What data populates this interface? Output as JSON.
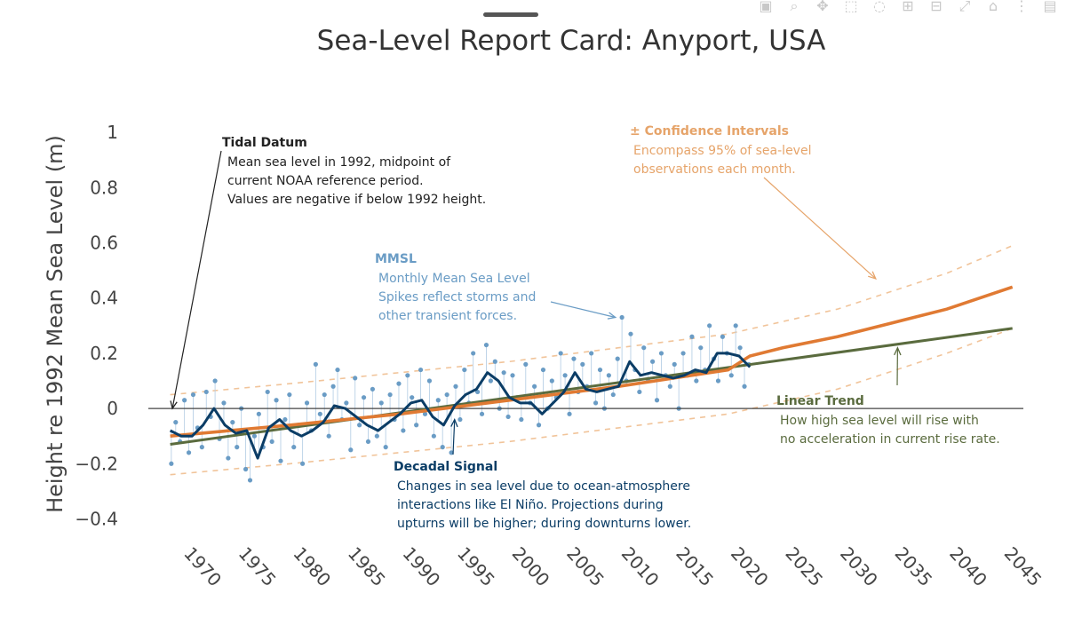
{
  "modebar": {
    "icons": [
      "camera-icon",
      "zoom-icon",
      "pan-icon",
      "box-select-icon",
      "lasso-icon",
      "zoom-in-icon",
      "zoom-out-icon",
      "autoscale-icon",
      "home-icon",
      "spike-lines-icon",
      "hover-compare-icon"
    ]
  },
  "colors": {
    "observations": "#6a9cc5",
    "decadal": "#0b3d66",
    "trend": "#5a6b3e",
    "projection": "#e07a33",
    "confidence": "#f1c49a",
    "tidal_annotation": "#222222",
    "mmsl_annotation": "#6a9cc5",
    "decadal_annotation": "#0b3d66",
    "confidence_annotation": "#e6a46a",
    "trend_annotation": "#5a6b3e"
  },
  "chart_data": {
    "type": "line",
    "title": "Sea-Level Report Card: Anyport, USA",
    "xlabel": "",
    "ylabel": "Height re 1992 Mean Sea Level (m)",
    "xlim": [
      1967,
      2047
    ],
    "ylim": [
      -0.45,
      1.02
    ],
    "xticks": [
      1970,
      1975,
      1980,
      1985,
      1990,
      1995,
      2000,
      2005,
      2010,
      2015,
      2020,
      2025,
      2030,
      2035,
      2040,
      2045
    ],
    "ytick_labels": [
      {
        "value": 1,
        "label": "1"
      },
      {
        "value": 0.8,
        "label": "0.8"
      },
      {
        "value": 0.6,
        "label": "0.6"
      },
      {
        "value": 0.4,
        "label": "0.4"
      },
      {
        "value": 0.2,
        "label": "0.2"
      },
      {
        "value": 0,
        "label": "0"
      },
      {
        "value": -0.2,
        "label": "−0.2"
      },
      {
        "value": -0.4,
        "label": "−0.4"
      }
    ],
    "zero_line": true,
    "grid": false,
    "legend": "none",
    "series": [
      {
        "role": "linear-trend",
        "x": [
          1969,
          2046
        ],
        "y": [
          -0.13,
          0.29
        ]
      },
      {
        "role": "upper-confidence",
        "x": [
          1969,
          1980,
          1990,
          2000,
          2010,
          2020,
          2030,
          2040,
          2046
        ],
        "y": [
          0.05,
          0.09,
          0.13,
          0.17,
          0.22,
          0.27,
          0.36,
          0.49,
          0.59
        ]
      },
      {
        "role": "lower-confidence",
        "x": [
          1969,
          1980,
          1990,
          2000,
          2010,
          2020,
          2030,
          2040,
          2046
        ],
        "y": [
          -0.24,
          -0.2,
          -0.16,
          -0.12,
          -0.07,
          -0.02,
          0.07,
          0.2,
          0.29
        ]
      },
      {
        "role": "quadratic-projection",
        "x": [
          1969,
          1980,
          1990,
          2000,
          2010,
          2020,
          2022,
          2025,
          2030,
          2035,
          2040,
          2046
        ],
        "y": [
          -0.1,
          -0.06,
          -0.02,
          0.03,
          0.08,
          0.14,
          0.19,
          0.22,
          0.26,
          0.31,
          0.36,
          0.44
        ]
      },
      {
        "role": "decadal-signal",
        "x": [
          1969,
          1970,
          1971,
          1972,
          1973,
          1974,
          1975,
          1976,
          1977,
          1978,
          1979,
          1980,
          1981,
          1982,
          1983,
          1984,
          1985,
          1986,
          1987,
          1988,
          1989,
          1990,
          1991,
          1992,
          1993,
          1994,
          1995,
          1996,
          1997,
          1998,
          1999,
          2000,
          2001,
          2002,
          2003,
          2004,
          2005,
          2006,
          2007,
          2008,
          2009,
          2010,
          2011,
          2012,
          2013,
          2014,
          2015,
          2016,
          2017,
          2018,
          2019,
          2020,
          2021,
          2022
        ],
        "y": [
          -0.08,
          -0.1,
          -0.1,
          -0.06,
          -0.0,
          -0.06,
          -0.09,
          -0.08,
          -0.18,
          -0.07,
          -0.04,
          -0.08,
          -0.1,
          -0.08,
          -0.05,
          0.01,
          0.0,
          -0.03,
          -0.06,
          -0.08,
          -0.05,
          -0.02,
          0.02,
          0.03,
          -0.03,
          -0.06,
          0.01,
          0.05,
          0.07,
          0.13,
          0.1,
          0.04,
          0.02,
          0.02,
          -0.02,
          0.02,
          0.06,
          0.13,
          0.07,
          0.06,
          0.07,
          0.08,
          0.17,
          0.12,
          0.13,
          0.12,
          0.11,
          0.12,
          0.14,
          0.13,
          0.2,
          0.2,
          0.19,
          0.15
        ]
      },
      {
        "role": "monthly-mean-sea-level",
        "x": [
          1969.1,
          1969.5,
          1969.9,
          1970.3,
          1970.7,
          1971.1,
          1971.5,
          1971.9,
          1972.3,
          1972.7,
          1973.1,
          1973.5,
          1973.9,
          1974.3,
          1974.7,
          1975.1,
          1975.5,
          1975.9,
          1976.3,
          1976.7,
          1977.1,
          1977.5,
          1977.9,
          1978.3,
          1978.7,
          1979.1,
          1979.5,
          1979.9,
          1980.3,
          1980.7,
          1981.1,
          1981.5,
          1981.9,
          1982.3,
          1982.7,
          1983.1,
          1983.5,
          1983.9,
          1984.3,
          1984.7,
          1985.1,
          1985.5,
          1985.9,
          1986.3,
          1986.7,
          1987.1,
          1987.5,
          1987.9,
          1988.3,
          1988.7,
          1989.1,
          1989.5,
          1989.9,
          1990.3,
          1990.7,
          1991.1,
          1991.5,
          1991.9,
          1992.3,
          1992.7,
          1993.1,
          1993.5,
          1993.9,
          1994.3,
          1994.7,
          1995.1,
          1995.5,
          1995.9,
          1996.3,
          1996.7,
          1997.1,
          1997.5,
          1997.9,
          1998.3,
          1998.7,
          1999.1,
          1999.5,
          1999.9,
          2000.3,
          2000.7,
          2001.1,
          2001.5,
          2001.9,
          2002.3,
          2002.7,
          2003.1,
          2003.5,
          2003.9,
          2004.3,
          2004.7,
          2005.1,
          2005.5,
          2005.9,
          2006.3,
          2006.7,
          2007.1,
          2007.5,
          2007.9,
          2008.3,
          2008.7,
          2009.1,
          2009.5,
          2009.9,
          2010.3,
          2010.7,
          2011.1,
          2011.5,
          2011.9,
          2012.3,
          2012.7,
          2013.1,
          2013.5,
          2013.9,
          2014.3,
          2014.7,
          2015.1,
          2015.5,
          2015.9,
          2016.3,
          2016.7,
          2017.1,
          2017.5,
          2017.9,
          2018.3,
          2018.7,
          2019.1,
          2019.5,
          2019.9,
          2020.3,
          2020.7,
          2021.1,
          2021.5,
          2021.9
        ],
        "y": [
          -0.2,
          -0.05,
          -0.12,
          0.03,
          -0.16,
          0.05,
          -0.07,
          -0.14,
          0.06,
          -0.03,
          0.1,
          -0.11,
          0.02,
          -0.18,
          -0.05,
          -0.14,
          0.0,
          -0.22,
          -0.26,
          -0.1,
          -0.02,
          -0.14,
          0.06,
          -0.12,
          0.03,
          -0.19,
          -0.04,
          0.05,
          -0.14,
          -0.06,
          -0.2,
          0.02,
          -0.08,
          0.16,
          -0.02,
          0.05,
          -0.1,
          0.08,
          0.14,
          -0.04,
          0.02,
          -0.15,
          0.11,
          -0.06,
          0.04,
          -0.12,
          0.07,
          -0.1,
          0.02,
          -0.14,
          0.05,
          -0.04,
          0.09,
          -0.08,
          0.12,
          0.04,
          -0.06,
          0.14,
          -0.02,
          0.1,
          -0.1,
          0.03,
          -0.14,
          0.05,
          -0.16,
          0.08,
          -0.04,
          0.14,
          0.02,
          0.2,
          0.06,
          -0.02,
          0.23,
          0.1,
          0.17,
          0.0,
          0.13,
          -0.03,
          0.12,
          0.04,
          -0.04,
          0.16,
          0.02,
          0.08,
          -0.06,
          0.14,
          0.0,
          0.1,
          0.04,
          0.2,
          0.12,
          -0.02,
          0.18,
          0.06,
          0.16,
          0.08,
          0.2,
          0.02,
          0.14,
          0.0,
          0.12,
          0.05,
          0.18,
          0.33,
          0.1,
          0.27,
          0.14,
          0.06,
          0.22,
          0.1,
          0.17,
          0.03,
          0.2,
          0.12,
          0.08,
          0.16,
          0.0,
          0.2,
          0.12,
          0.26,
          0.1,
          0.22,
          0.14,
          0.3,
          0.18,
          0.1,
          0.26,
          0.2,
          0.12,
          0.3,
          0.22,
          0.08,
          0.16
        ]
      }
    ],
    "annotations": [
      {
        "role": "tidal",
        "title": "Tidal Datum",
        "lines": [
          "Mean sea level in 1992, midpoint of",
          "current NOAA reference period.",
          "Values are negative if below 1992 height."
        ],
        "target": [
          1969.2,
          0.0
        ]
      },
      {
        "role": "mmsl",
        "title": "MMSL",
        "lines": [
          "Monthly Mean Sea Level",
          "Spikes reflect storms and",
          "other transient forces."
        ],
        "target": [
          2009.7,
          0.33
        ]
      },
      {
        "role": "confidence",
        "title": "± Confidence Intervals",
        "lines": [
          "Encompass 95% of sea-level",
          "observations each month."
        ],
        "target": [
          2033.5,
          0.47
        ]
      },
      {
        "role": "decadal",
        "title": "Decadal Signal",
        "lines": [
          "Changes in sea level due to ocean-atmosphere",
          "interactions like El Niño. Projections during",
          "upturns will be higher; during downturns lower."
        ],
        "target": [
          1995,
          -0.04
        ]
      },
      {
        "role": "trend",
        "title": "Linear Trend",
        "lines": [
          "How high sea level will rise with",
          "no acceleration in current rise rate."
        ],
        "target": [
          2035.5,
          0.22
        ]
      }
    ]
  }
}
